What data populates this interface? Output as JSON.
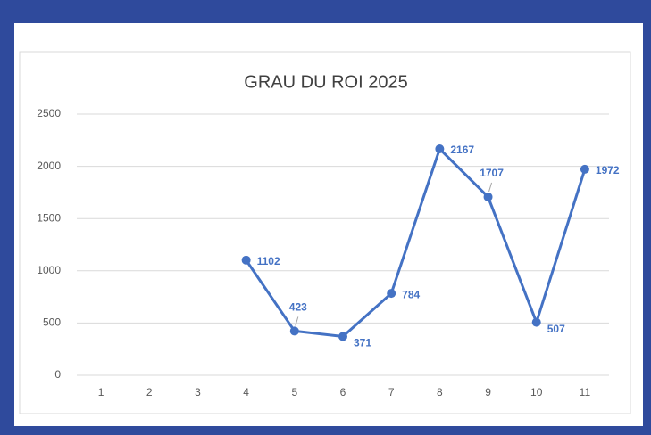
{
  "chart_data": {
    "type": "line",
    "title": "GRAU DU ROI 2025",
    "categories": [
      1,
      2,
      3,
      4,
      5,
      6,
      7,
      8,
      9,
      10,
      11
    ],
    "series": [
      {
        "name": "GRAU DU ROI 2025",
        "color": "#4472c4",
        "values": [
          null,
          null,
          null,
          1102,
          423,
          371,
          784,
          2167,
          1707,
          507,
          1972
        ]
      }
    ],
    "ylim": [
      0,
      2500
    ],
    "yticks": [
      0,
      500,
      1000,
      1500,
      2000,
      2500
    ],
    "grid": true,
    "data_labels": true
  }
}
